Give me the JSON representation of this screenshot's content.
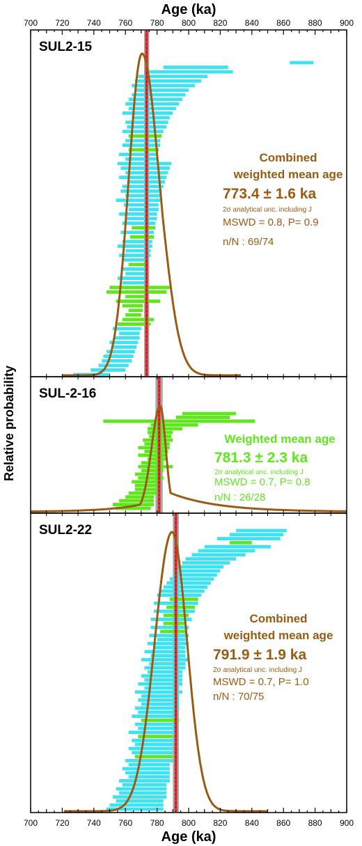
{
  "figure": {
    "x_axis_title": "Age (ka)",
    "y_axis_title": "Relative probability"
  },
  "colors": {
    "brown": "#9b5a12",
    "cyan": "#3ee3f2",
    "green": "#5ee81c",
    "red": "#e03030",
    "grey": "#a8a8a8"
  },
  "chart_data": [
    {
      "type": "line",
      "panel": "SUL2-15",
      "title": "SUL2-15",
      "xlim": [
        700,
        900
      ],
      "xticks": [
        700,
        720,
        740,
        760,
        780,
        800,
        820,
        840,
        860,
        880,
        900
      ],
      "mean_age": 773.4,
      "mean_band": [
        771.8,
        775.0
      ],
      "annotation": {
        "heading": [
          "Combined",
          "weighted mean age"
        ],
        "value": "773.4 ± 1.6 ka",
        "note": "2σ analytical unc. including J",
        "mswd": "MSWD = 0.8, P= 0.9",
        "n": "n/N : 69/74",
        "color": "brown"
      },
      "curve": {
        "peak": 770.5,
        "sigma_left": 8.5,
        "sigma_right": 11,
        "baseline": 720,
        "end": 833
      },
      "bars": [
        {
          "low": 864,
          "high": 879,
          "color": "cyan"
        },
        {
          "low": 784,
          "high": 825,
          "color": "cyan"
        },
        {
          "low": 775,
          "high": 828,
          "color": "cyan"
        },
        {
          "low": 768,
          "high": 812,
          "color": "cyan"
        },
        {
          "low": 766,
          "high": 808,
          "color": "cyan"
        },
        {
          "low": 764,
          "high": 804,
          "color": "cyan"
        },
        {
          "low": 766,
          "high": 800,
          "color": "cyan"
        },
        {
          "low": 764,
          "high": 798,
          "color": "cyan"
        },
        {
          "low": 762,
          "high": 796,
          "color": "cyan"
        },
        {
          "low": 760,
          "high": 794,
          "color": "cyan"
        },
        {
          "low": 762,
          "high": 792,
          "color": "cyan"
        },
        {
          "low": 758,
          "high": 790,
          "color": "cyan"
        },
        {
          "low": 764,
          "high": 788,
          "color": "cyan"
        },
        {
          "low": 760,
          "high": 787,
          "color": "cyan"
        },
        {
          "low": 761,
          "high": 786,
          "color": "cyan"
        },
        {
          "low": 758,
          "high": 784,
          "color": "cyan"
        },
        {
          "low": 762,
          "high": 783,
          "color": "green"
        },
        {
          "low": 760,
          "high": 782,
          "color": "cyan"
        },
        {
          "low": 758,
          "high": 782,
          "color": "cyan"
        },
        {
          "low": 762,
          "high": 781,
          "color": "green"
        },
        {
          "low": 756,
          "high": 780,
          "color": "cyan"
        },
        {
          "low": 760,
          "high": 780,
          "color": "cyan"
        },
        {
          "low": 755,
          "high": 789,
          "color": "cyan"
        },
        {
          "low": 757,
          "high": 788,
          "color": "cyan"
        },
        {
          "low": 760,
          "high": 787,
          "color": "cyan"
        },
        {
          "low": 756,
          "high": 786,
          "color": "cyan"
        },
        {
          "low": 761,
          "high": 785,
          "color": "cyan"
        },
        {
          "low": 758,
          "high": 784,
          "color": "cyan"
        },
        {
          "low": 757,
          "high": 783,
          "color": "cyan"
        },
        {
          "low": 760,
          "high": 783,
          "color": "cyan"
        },
        {
          "low": 754,
          "high": 782,
          "color": "cyan"
        },
        {
          "low": 759,
          "high": 781,
          "color": "cyan"
        },
        {
          "low": 762,
          "high": 781,
          "color": "cyan"
        },
        {
          "low": 756,
          "high": 780,
          "color": "cyan"
        },
        {
          "low": 760,
          "high": 780,
          "color": "cyan"
        },
        {
          "low": 758,
          "high": 779,
          "color": "cyan"
        },
        {
          "low": 764,
          "high": 779,
          "color": "green"
        },
        {
          "low": 757,
          "high": 778,
          "color": "cyan"
        },
        {
          "low": 763,
          "high": 778,
          "color": "green"
        },
        {
          "low": 758,
          "high": 777,
          "color": "cyan"
        },
        {
          "low": 755,
          "high": 777,
          "color": "cyan"
        },
        {
          "low": 760,
          "high": 776,
          "color": "cyan"
        },
        {
          "low": 756,
          "high": 776,
          "color": "cyan"
        },
        {
          "low": 759,
          "high": 775,
          "color": "cyan"
        },
        {
          "low": 762,
          "high": 774,
          "color": "green"
        },
        {
          "low": 757,
          "high": 774,
          "color": "cyan"
        },
        {
          "low": 760,
          "high": 773,
          "color": "cyan"
        },
        {
          "low": 755,
          "high": 773,
          "color": "cyan"
        },
        {
          "low": 758,
          "high": 772,
          "color": "cyan"
        },
        {
          "low": 750,
          "high": 788,
          "color": "green"
        },
        {
          "low": 748,
          "high": 786,
          "color": "green"
        },
        {
          "low": 760,
          "high": 772,
          "color": "green"
        },
        {
          "low": 754,
          "high": 782,
          "color": "green"
        },
        {
          "low": 758,
          "high": 771,
          "color": "green"
        },
        {
          "low": 762,
          "high": 771,
          "color": "green"
        },
        {
          "low": 760,
          "high": 770,
          "color": "green"
        },
        {
          "low": 758,
          "high": 778,
          "color": "green"
        },
        {
          "low": 755,
          "high": 776,
          "color": "green"
        },
        {
          "low": 752,
          "high": 770,
          "color": "cyan"
        },
        {
          "low": 756,
          "high": 769,
          "color": "cyan"
        },
        {
          "low": 753,
          "high": 769,
          "color": "cyan"
        },
        {
          "low": 750,
          "high": 768,
          "color": "cyan"
        },
        {
          "low": 751,
          "high": 767,
          "color": "cyan"
        },
        {
          "low": 748,
          "high": 766,
          "color": "cyan"
        },
        {
          "low": 746,
          "high": 765,
          "color": "cyan"
        },
        {
          "low": 745,
          "high": 764,
          "color": "cyan"
        },
        {
          "low": 743,
          "high": 762,
          "color": "cyan"
        },
        {
          "low": 738,
          "high": 760,
          "color": "cyan"
        },
        {
          "low": 727,
          "high": 750,
          "color": "cyan"
        }
      ]
    },
    {
      "type": "line",
      "panel": "SUL-2-16",
      "title": "SUL-2-16",
      "xlim": [
        700,
        900
      ],
      "mean_age": 781.3,
      "mean_band": [
        779.0,
        783.6
      ],
      "annotation": {
        "heading": [
          "Weighted mean age"
        ],
        "value": "781.3 ± 2.3 ka",
        "note": "2σ analytical unc. including J",
        "mswd": "MSWD = 0.7, P= 0.8",
        "n": "n/N : 26/28",
        "color": "green"
      },
      "curve": {
        "peak": 782,
        "sigma_left": 5.5,
        "sigma_right": 3.5,
        "baseline": 700,
        "end": 900,
        "tail_right": 0.22
      },
      "bars": [
        {
          "low": 796,
          "high": 830,
          "color": "green"
        },
        {
          "low": 792,
          "high": 826,
          "color": "green"
        },
        {
          "low": 746,
          "high": 842,
          "color": "green"
        },
        {
          "low": 776,
          "high": 806,
          "color": "green"
        },
        {
          "low": 774,
          "high": 796,
          "color": "green"
        },
        {
          "low": 774,
          "high": 790,
          "color": "green"
        },
        {
          "low": 775,
          "high": 789,
          "color": "green"
        },
        {
          "low": 771,
          "high": 790,
          "color": "green"
        },
        {
          "low": 772,
          "high": 788,
          "color": "green"
        },
        {
          "low": 768,
          "high": 788,
          "color": "green"
        },
        {
          "low": 772,
          "high": 787,
          "color": "green"
        },
        {
          "low": 768,
          "high": 786,
          "color": "green"
        },
        {
          "low": 774,
          "high": 786,
          "color": "green"
        },
        {
          "low": 770,
          "high": 784,
          "color": "green"
        },
        {
          "low": 768,
          "high": 790,
          "color": "green"
        },
        {
          "low": 770,
          "high": 784,
          "color": "green"
        },
        {
          "low": 766,
          "high": 782,
          "color": "green"
        },
        {
          "low": 768,
          "high": 784,
          "color": "green"
        },
        {
          "low": 764,
          "high": 782,
          "color": "green"
        },
        {
          "low": 766,
          "high": 780,
          "color": "green"
        },
        {
          "low": 766,
          "high": 780,
          "color": "green"
        },
        {
          "low": 762,
          "high": 780,
          "color": "green"
        },
        {
          "low": 760,
          "high": 778,
          "color": "green"
        },
        {
          "low": 756,
          "high": 778,
          "color": "green"
        },
        {
          "low": 752,
          "high": 778,
          "color": "green"
        },
        {
          "low": 754,
          "high": 776,
          "color": "green"
        }
      ]
    },
    {
      "type": "line",
      "panel": "SUL2-22",
      "title": "SUL2-22",
      "xlim": [
        700,
        900
      ],
      "xticks": [
        700,
        720,
        740,
        760,
        780,
        800,
        820,
        840,
        860,
        880,
        900
      ],
      "mean_age": 791.9,
      "mean_band": [
        790.0,
        793.8
      ],
      "annotation": {
        "heading": [
          "Combined",
          "weighted mean age"
        ],
        "value": "791.9 ± 1.9 ka",
        "note": "2σ analytical unc. including J",
        "mswd": "MSWD = 0.7, P= 1.0",
        "n": "n/N : 70/75",
        "color": "brown"
      },
      "curve": {
        "peak": 789.5,
        "sigma_left": 11,
        "sigma_right": 9.5,
        "baseline": 721,
        "end": 850
      },
      "bars": [
        {
          "low": 830,
          "high": 862,
          "color": "cyan"
        },
        {
          "low": 826,
          "high": 860,
          "color": "cyan"
        },
        {
          "low": 818,
          "high": 858,
          "color": "cyan"
        },
        {
          "low": 826,
          "high": 840,
          "color": "green"
        },
        {
          "low": 810,
          "high": 852,
          "color": "cyan"
        },
        {
          "low": 806,
          "high": 842,
          "color": "cyan"
        },
        {
          "low": 802,
          "high": 836,
          "color": "cyan"
        },
        {
          "low": 798,
          "high": 830,
          "color": "cyan"
        },
        {
          "low": 796,
          "high": 826,
          "color": "cyan"
        },
        {
          "low": 794,
          "high": 822,
          "color": "cyan"
        },
        {
          "low": 792,
          "high": 820,
          "color": "cyan"
        },
        {
          "low": 790,
          "high": 818,
          "color": "cyan"
        },
        {
          "low": 788,
          "high": 816,
          "color": "cyan"
        },
        {
          "low": 786,
          "high": 814,
          "color": "cyan"
        },
        {
          "low": 784,
          "high": 812,
          "color": "cyan"
        },
        {
          "low": 782,
          "high": 810,
          "color": "cyan"
        },
        {
          "low": 780,
          "high": 808,
          "color": "cyan"
        },
        {
          "low": 788,
          "high": 806,
          "color": "green"
        },
        {
          "low": 778,
          "high": 806,
          "color": "cyan"
        },
        {
          "low": 786,
          "high": 804,
          "color": "green"
        },
        {
          "low": 778,
          "high": 804,
          "color": "cyan"
        },
        {
          "low": 784,
          "high": 800,
          "color": "green"
        },
        {
          "low": 776,
          "high": 802,
          "color": "cyan"
        },
        {
          "low": 784,
          "high": 798,
          "color": "green"
        },
        {
          "low": 776,
          "high": 800,
          "color": "cyan"
        },
        {
          "low": 782,
          "high": 798,
          "color": "green"
        },
        {
          "low": 775,
          "high": 800,
          "color": "cyan"
        },
        {
          "low": 780,
          "high": 798,
          "color": "cyan"
        },
        {
          "low": 774,
          "high": 800,
          "color": "cyan"
        },
        {
          "low": 778,
          "high": 798,
          "color": "cyan"
        },
        {
          "low": 772,
          "high": 798,
          "color": "cyan"
        },
        {
          "low": 776,
          "high": 798,
          "color": "cyan"
        },
        {
          "low": 770,
          "high": 800,
          "color": "cyan"
        },
        {
          "low": 775,
          "high": 798,
          "color": "cyan"
        },
        {
          "low": 772,
          "high": 798,
          "color": "cyan"
        },
        {
          "low": 774,
          "high": 796,
          "color": "cyan"
        },
        {
          "low": 770,
          "high": 796,
          "color": "cyan"
        },
        {
          "low": 772,
          "high": 796,
          "color": "cyan"
        },
        {
          "low": 768,
          "high": 796,
          "color": "cyan"
        },
        {
          "low": 772,
          "high": 794,
          "color": "cyan"
        },
        {
          "low": 766,
          "high": 796,
          "color": "cyan"
        },
        {
          "low": 770,
          "high": 794,
          "color": "cyan"
        },
        {
          "low": 768,
          "high": 794,
          "color": "cyan"
        },
        {
          "low": 770,
          "high": 794,
          "color": "cyan"
        },
        {
          "low": 766,
          "high": 794,
          "color": "cyan"
        },
        {
          "low": 768,
          "high": 792,
          "color": "cyan"
        },
        {
          "low": 764,
          "high": 792,
          "color": "cyan"
        },
        {
          "low": 770,
          "high": 794,
          "color": "green"
        },
        {
          "low": 766,
          "high": 792,
          "color": "cyan"
        },
        {
          "low": 768,
          "high": 792,
          "color": "cyan"
        },
        {
          "low": 762,
          "high": 792,
          "color": "cyan"
        },
        {
          "low": 768,
          "high": 790,
          "color": "green"
        },
        {
          "low": 764,
          "high": 792,
          "color": "cyan"
        },
        {
          "low": 766,
          "high": 790,
          "color": "cyan"
        },
        {
          "low": 762,
          "high": 790,
          "color": "cyan"
        },
        {
          "low": 764,
          "high": 790,
          "color": "cyan"
        },
        {
          "low": 766,
          "high": 790,
          "color": "green"
        },
        {
          "low": 760,
          "high": 790,
          "color": "cyan"
        },
        {
          "low": 762,
          "high": 788,
          "color": "cyan"
        },
        {
          "low": 758,
          "high": 788,
          "color": "cyan"
        },
        {
          "low": 760,
          "high": 788,
          "color": "cyan"
        },
        {
          "low": 762,
          "high": 788,
          "color": "cyan"
        },
        {
          "low": 756,
          "high": 788,
          "color": "cyan"
        },
        {
          "low": 758,
          "high": 786,
          "color": "cyan"
        },
        {
          "low": 754,
          "high": 786,
          "color": "cyan"
        },
        {
          "low": 756,
          "high": 786,
          "color": "cyan"
        },
        {
          "low": 752,
          "high": 786,
          "color": "cyan"
        },
        {
          "low": 754,
          "high": 784,
          "color": "cyan"
        },
        {
          "low": 750,
          "high": 784,
          "color": "cyan"
        },
        {
          "low": 748,
          "high": 784,
          "color": "cyan"
        }
      ]
    }
  ]
}
